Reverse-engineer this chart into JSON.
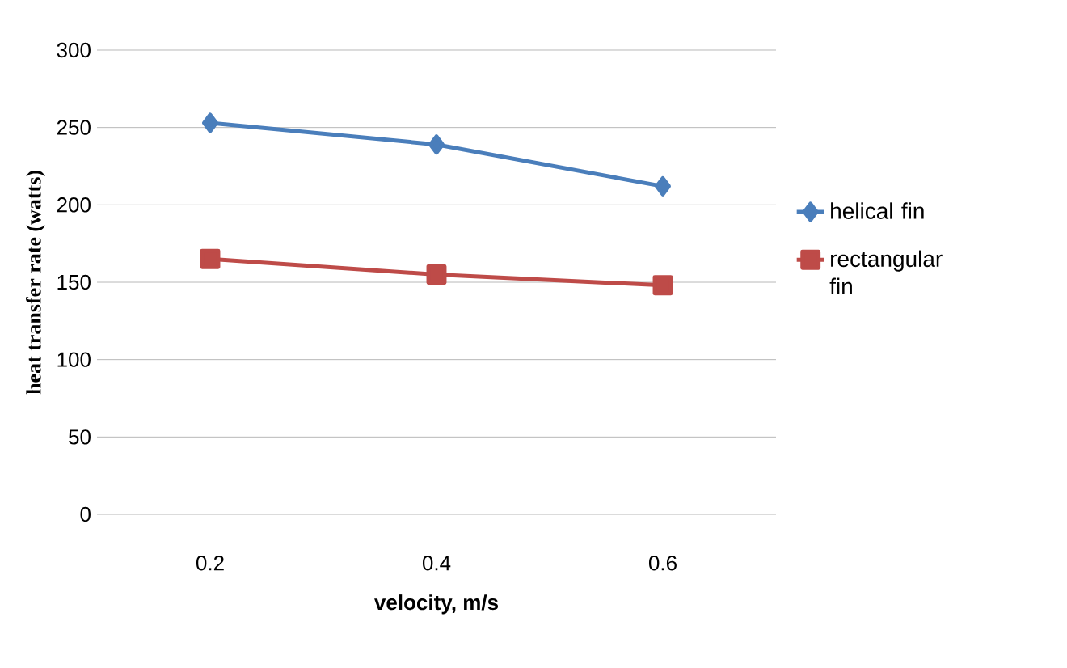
{
  "chart_data": {
    "type": "line",
    "xlabel": "velocity, m/s",
    "ylabel": "heat transfer rate (watts)",
    "categories": [
      "0.2",
      "0.4",
      "0.6"
    ],
    "series": [
      {
        "name": "helical fin",
        "color": "#4a7ebb",
        "marker": "diamond",
        "values": [
          253,
          239,
          212
        ]
      },
      {
        "name": "rectangular fin",
        "color": "#be4b48",
        "marker": "square",
        "values": [
          165,
          155,
          148
        ]
      }
    ],
    "ylim": [
      0,
      300
    ],
    "yticks": [
      0,
      50,
      100,
      150,
      200,
      250,
      300
    ],
    "grid": "y",
    "legend": "right"
  }
}
